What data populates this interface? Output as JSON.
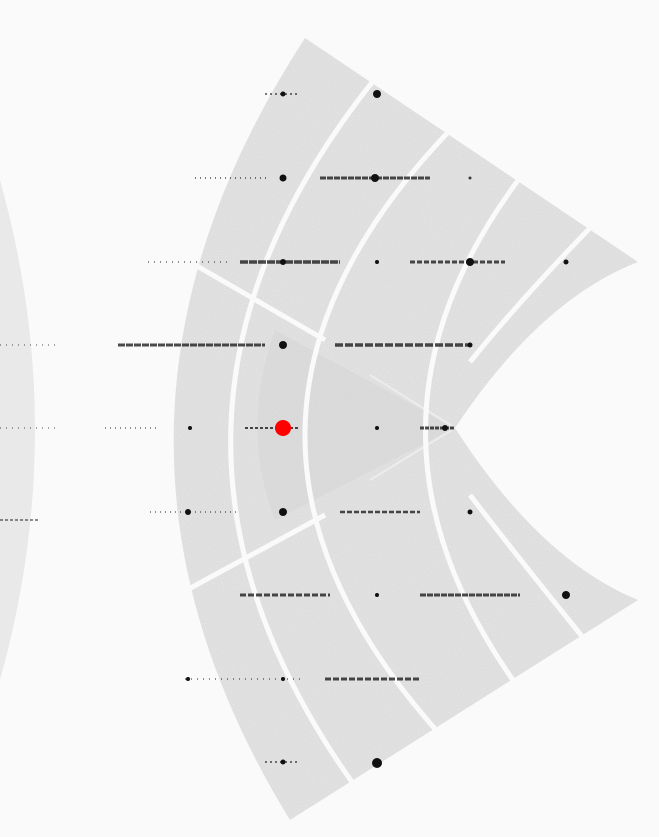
{
  "image": {
    "subject": "diffraction-pattern",
    "background_color": "#fafafa",
    "detector_color": "#e8e8e8",
    "gap_color": "#fafafa",
    "spot_color": "#111111",
    "marker_color": "#ff0000"
  },
  "marker": {
    "name": "beam-center-marker",
    "color": "#ff0000"
  }
}
